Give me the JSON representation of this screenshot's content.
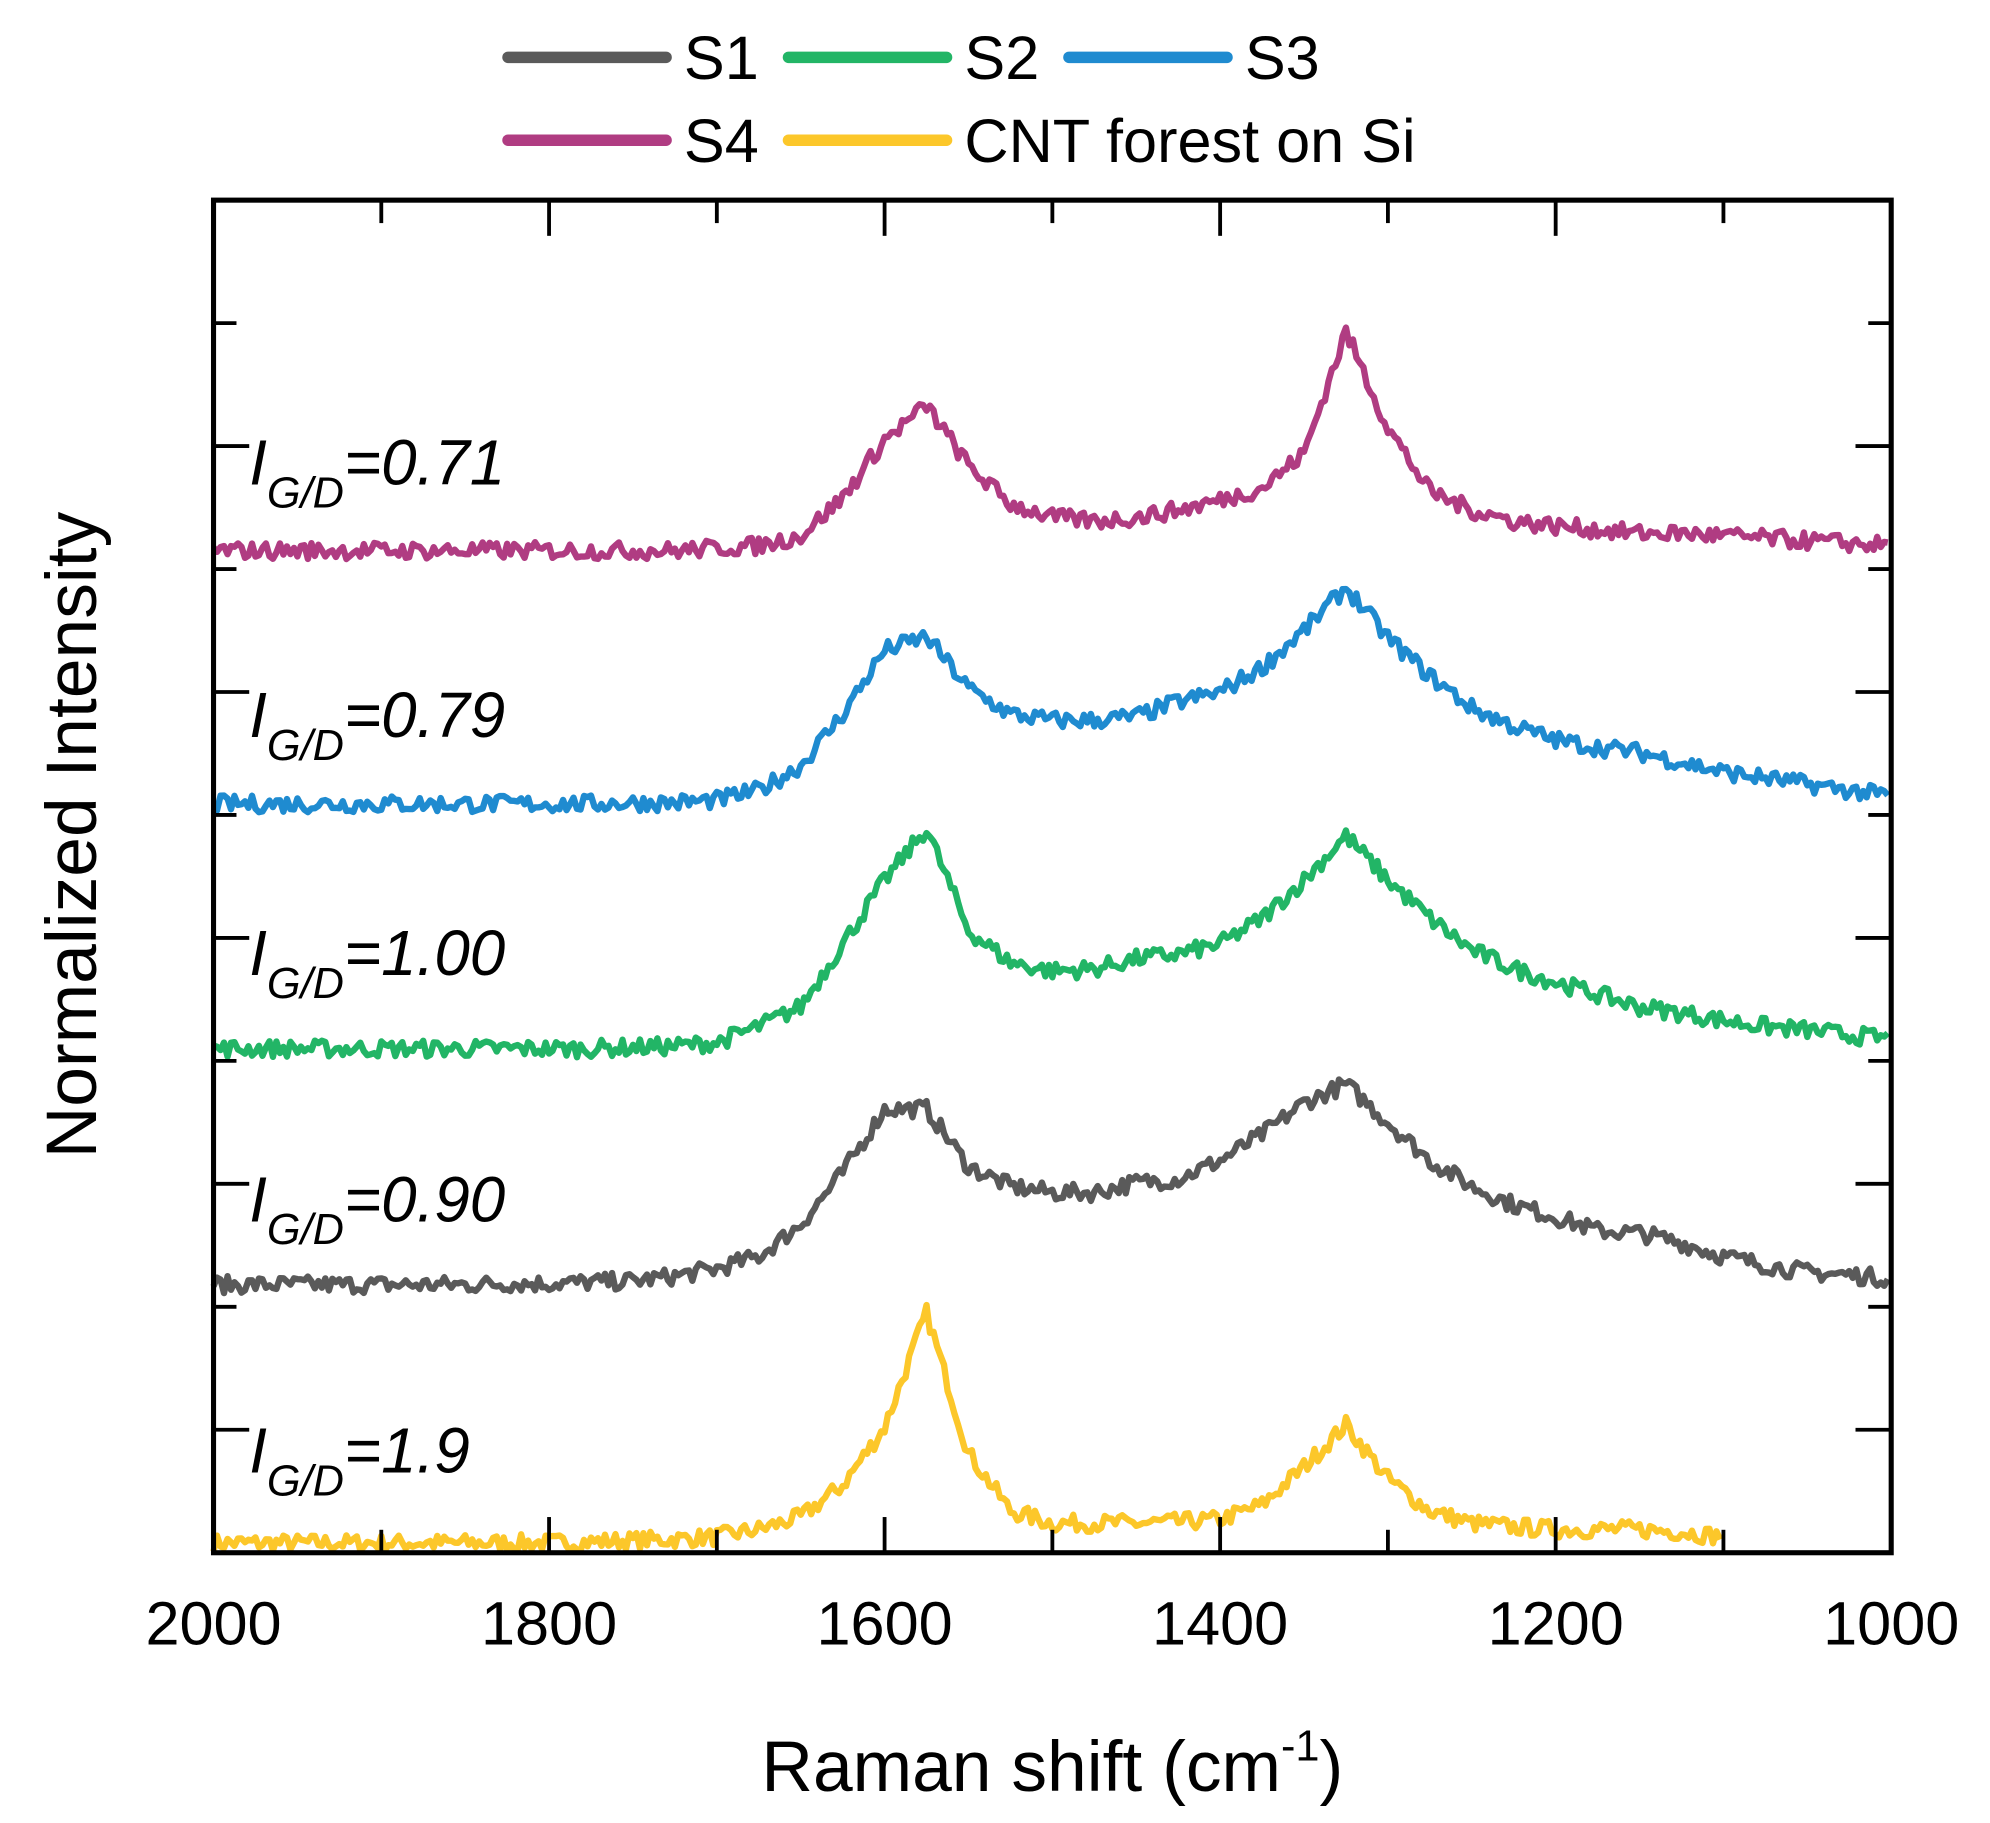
{
  "chart_data": {
    "type": "line",
    "title": "",
    "xlabel": "Raman shift (cm",
    "xlabel_sup": "-1",
    "xlabel_close": ")",
    "ylabel": "Normalized Intensity",
    "xlim": [
      2000,
      1000
    ],
    "ylim": [
      0,
      11
    ],
    "x_ticks": [
      "2000",
      "1800",
      "1600",
      "1400",
      "1200",
      "1000"
    ],
    "x_tick_values": [
      2000,
      1800,
      1600,
      1400,
      1200,
      1000
    ],
    "y_tick_labels_shown": false,
    "legend_placement": "top",
    "x": [
      2000,
      1975,
      1950,
      1925,
      1900,
      1875,
      1850,
      1825,
      1800,
      1775,
      1750,
      1725,
      1700,
      1675,
      1650,
      1625,
      1600,
      1575,
      1550,
      1525,
      1500,
      1475,
      1450,
      1425,
      1400,
      1375,
      1350,
      1325,
      1300,
      1275,
      1250,
      1225,
      1200,
      1175,
      1150,
      1125,
      1100,
      1075,
      1050,
      1025,
      1000
    ],
    "series": [
      {
        "name": "S1",
        "color": "#5a5a5a",
        "annotation_value": "=0.90",
        "values": [
          2.18,
          2.18,
          2.18,
          2.18,
          2.18,
          2.18,
          2.18,
          2.19,
          2.19,
          2.2,
          2.21,
          2.25,
          2.31,
          2.41,
          2.67,
          3.09,
          3.61,
          3.61,
          3.14,
          2.98,
          2.93,
          2.93,
          3.01,
          3.04,
          3.19,
          3.4,
          3.66,
          3.81,
          3.5,
          3.19,
          2.98,
          2.83,
          2.73,
          2.62,
          2.6,
          2.52,
          2.41,
          2.34,
          2.28,
          2.26,
          2.23
        ]
      },
      {
        "name": "S2",
        "color": "#22b566",
        "annotation_value": "=1.00",
        "values": [
          4.1,
          4.1,
          4.1,
          4.1,
          4.1,
          4.1,
          4.1,
          4.1,
          4.1,
          4.1,
          4.11,
          4.12,
          4.15,
          4.28,
          4.44,
          4.95,
          5.47,
          5.89,
          5.06,
          4.8,
          4.73,
          4.75,
          4.83,
          4.87,
          4.95,
          5.16,
          5.47,
          5.83,
          5.47,
          5.16,
          4.9,
          4.75,
          4.64,
          4.54,
          4.44,
          4.39,
          4.33,
          4.28,
          4.25,
          4.21,
          4.18
        ]
      },
      {
        "name": "S3",
        "color": "#1f8bd0",
        "annotation_value": "=0.79",
        "values": [
          6.09,
          6.09,
          6.09,
          6.09,
          6.09,
          6.09,
          6.09,
          6.09,
          6.09,
          6.09,
          6.1,
          6.1,
          6.12,
          6.2,
          6.4,
          6.82,
          7.34,
          7.45,
          7.03,
          6.82,
          6.77,
          6.77,
          6.8,
          6.92,
          7.0,
          7.2,
          7.5,
          7.85,
          7.44,
          7.13,
          6.87,
          6.72,
          6.61,
          6.55,
          6.51,
          6.43,
          6.35,
          6.3,
          6.25,
          6.2,
          6.15
        ]
      },
      {
        "name": "S4",
        "color": "#b03c82",
        "annotation_value": "=0.71",
        "values": [
          8.15,
          8.15,
          8.15,
          8.15,
          8.15,
          8.15,
          8.15,
          8.15,
          8.15,
          8.15,
          8.15,
          8.15,
          8.17,
          8.19,
          8.27,
          8.58,
          9.05,
          9.33,
          8.84,
          8.53,
          8.42,
          8.39,
          8.42,
          8.48,
          8.56,
          8.66,
          8.94,
          9.93,
          9.15,
          8.63,
          8.48,
          8.39,
          8.35,
          8.32,
          8.29,
          8.29,
          8.27,
          8.25,
          8.23,
          8.21,
          8.19
        ]
      },
      {
        "name": "CNT forest on Si",
        "color": "#fcc72a",
        "annotation_value": "=1.9",
        "values": [
          0.08,
          0.08,
          0.08,
          0.08,
          0.08,
          0.08,
          0.08,
          0.08,
          0.08,
          0.09,
          0.1,
          0.11,
          0.13,
          0.19,
          0.29,
          0.55,
          1.02,
          1.95,
          0.81,
          0.34,
          0.24,
          0.24,
          0.24,
          0.25,
          0.27,
          0.39,
          0.7,
          1.04,
          0.6,
          0.34,
          0.24,
          0.21,
          0.19,
          0.19,
          0.19,
          0.17,
          0.13,
          null,
          null,
          null,
          null
        ]
      }
    ],
    "annotation_prefix": "I",
    "annotation_sub": "G/D",
    "legend": [
      "S1",
      "S2",
      "S3",
      "S4",
      "CNT forest on Si"
    ]
  }
}
